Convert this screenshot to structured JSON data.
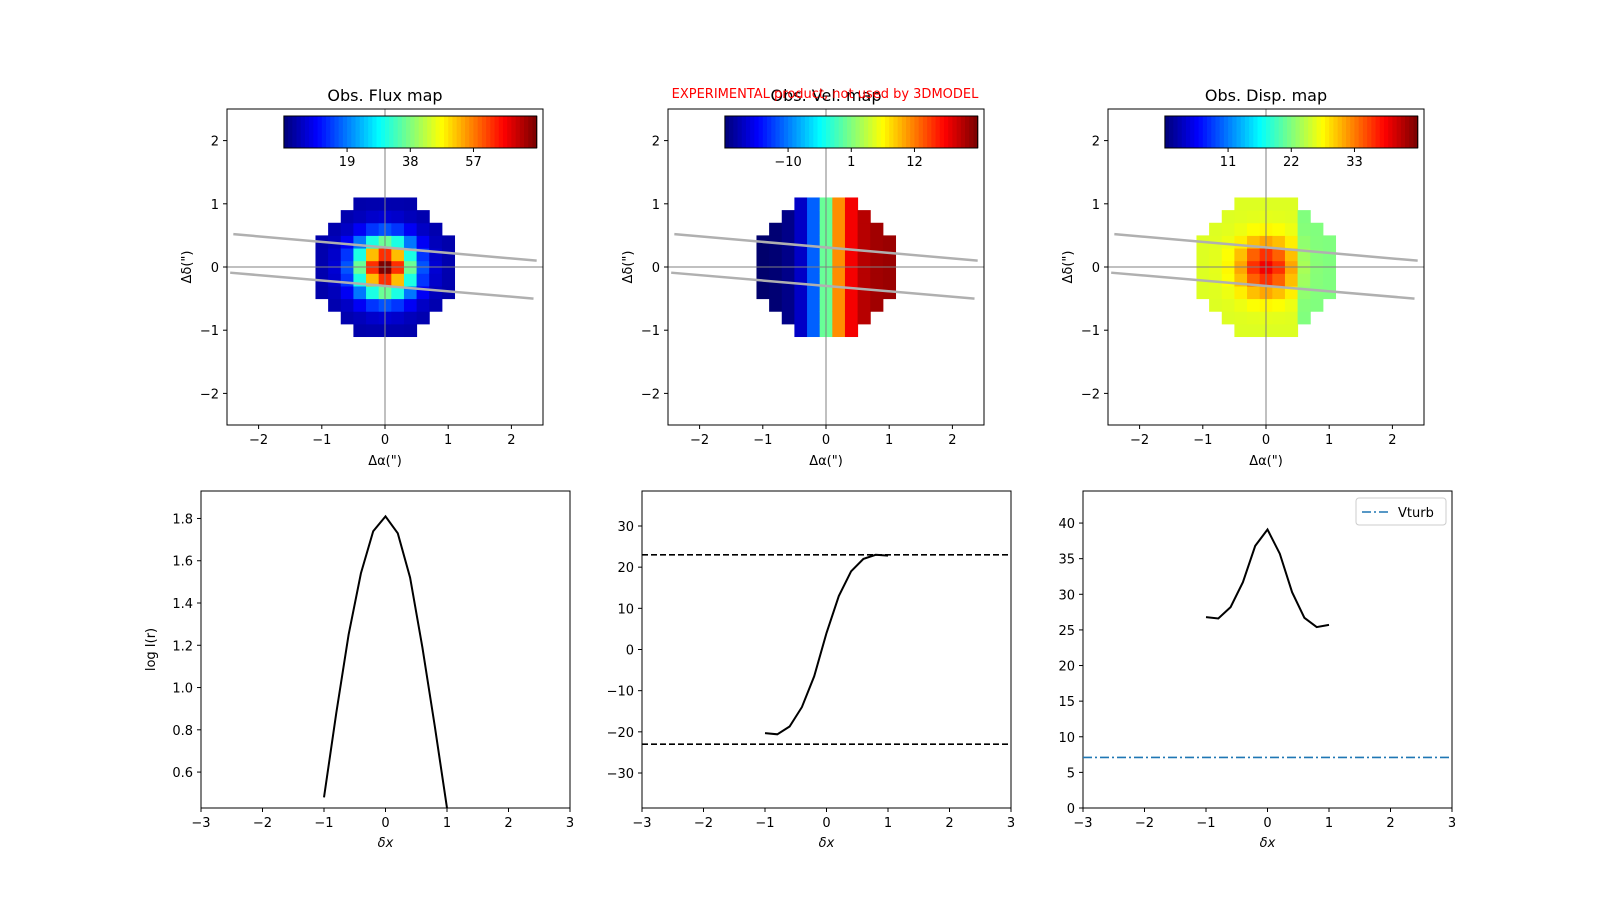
{
  "watermark": "EXPERIMENTAL product, not used by 3DMODEL",
  "colors": {
    "line": "#000000",
    "slit": "#b0b0b0",
    "crosshair": "#808080",
    "vturb": "#1f77b4",
    "colormap": "jet"
  },
  "chart_data": [
    {
      "id": "flux_map",
      "type": "heatmap",
      "title": "Obs. Flux map",
      "xlabel": "Δα(\")",
      "ylabel": "Δδ(\")",
      "xlim": [
        -2.5,
        2.5
      ],
      "ylim": [
        -2.5,
        2.5
      ],
      "xticks": [
        "−2",
        "−1",
        "0",
        "1",
        "2"
      ],
      "yticks": [
        "−2",
        "−1",
        "0",
        "1",
        "2"
      ],
      "grid": false,
      "colorbar": {
        "min": 0,
        "max": 76,
        "ticks": [
          "19",
          "38",
          "57"
        ],
        "position": "top"
      },
      "pixel_size": 0.2,
      "center": [
        0,
        0
      ],
      "radius": 1.1,
      "peak": 76,
      "sigma": 0.32,
      "floor": 3,
      "cells_estimate": "circular source, peak ~76 at center, falling to ~0-5 at r=1.1\""
    },
    {
      "id": "vel_map",
      "type": "heatmap",
      "title": "Obs. Vel. map",
      "xlabel": "Δα(\")",
      "ylabel": "Δδ(\")",
      "xlim": [
        -2.5,
        2.5
      ],
      "ylim": [
        -2.5,
        2.5
      ],
      "xticks": [
        "−2",
        "−1",
        "0",
        "1",
        "2"
      ],
      "yticks": [
        "−2",
        "−1",
        "0",
        "1",
        "2"
      ],
      "grid": false,
      "colorbar": {
        "min": -21,
        "max": 23,
        "ticks": [
          "−10",
          "1",
          "12"
        ],
        "position": "top"
      },
      "pixel_size": 0.2,
      "center": [
        0,
        0
      ],
      "radius": 1.1,
      "vmax": 22,
      "turnover": 0.35
    },
    {
      "id": "disp_map",
      "type": "heatmap",
      "title": "Obs. Disp. map",
      "xlabel": "Δα(\")",
      "ylabel": "Δδ(\")",
      "xlim": [
        -2.5,
        2.5
      ],
      "ylim": [
        -2.5,
        2.5
      ],
      "xticks": [
        "−2",
        "−1",
        "0",
        "1",
        "2"
      ],
      "yticks": [
        "−2",
        "−1",
        "0",
        "1",
        "2"
      ],
      "grid": false,
      "colorbar": {
        "min": 0,
        "max": 44,
        "ticks": [
          "11",
          "22",
          "33"
        ],
        "position": "top"
      },
      "pixel_size": 0.2,
      "center": [
        0,
        0
      ],
      "radius": 1.1,
      "base": 26,
      "peak": 39,
      "sigma": 0.3
    },
    {
      "id": "flux_profile",
      "type": "line",
      "title": "",
      "xlabel": "δx",
      "ylabel": "log I(r)",
      "xlim": [
        -3,
        3
      ],
      "ylim": [
        0.43,
        1.93
      ],
      "xticks": [
        "−3",
        "−2",
        "−1",
        "0",
        "1",
        "2",
        "3"
      ],
      "yticks": [
        "0.6",
        "0.8",
        "1.0",
        "1.2",
        "1.4",
        "1.6",
        "1.8"
      ],
      "grid": false,
      "x": [
        -1.0,
        -0.8,
        -0.6,
        -0.4,
        -0.2,
        0.0,
        0.2,
        0.4,
        0.6,
        0.8,
        1.0
      ],
      "y": [
        0.48,
        0.88,
        1.25,
        1.54,
        1.74,
        1.81,
        1.73,
        1.52,
        1.19,
        0.82,
        0.43
      ]
    },
    {
      "id": "vel_profile",
      "type": "line",
      "title": "",
      "xlabel": "δx",
      "ylabel": "",
      "xlim": [
        -3,
        3
      ],
      "ylim": [
        -38.5,
        38.5
      ],
      "xticks": [
        "−3",
        "−2",
        "−1",
        "0",
        "1",
        "2",
        "3"
      ],
      "yticks": [
        "−30",
        "−20",
        "−10",
        "0",
        "10",
        "20",
        "30"
      ],
      "grid": false,
      "x": [
        -1.0,
        -0.8,
        -0.6,
        -0.4,
        -0.2,
        0.0,
        0.2,
        0.4,
        0.6,
        0.8,
        1.0
      ],
      "y": [
        -20.3,
        -20.6,
        -18.7,
        -14.0,
        -6.5,
        4.0,
        13.0,
        19.0,
        22.0,
        23.0,
        22.8
      ],
      "hlines": [
        23.0,
        -23.0
      ]
    },
    {
      "id": "disp_profile",
      "type": "line",
      "title": "",
      "xlabel": "δx",
      "ylabel": "",
      "xlim": [
        -3,
        3
      ],
      "ylim": [
        0,
        44.5
      ],
      "xticks": [
        "−3",
        "−2",
        "−1",
        "0",
        "1",
        "2",
        "3"
      ],
      "yticks": [
        "0",
        "5",
        "10",
        "15",
        "20",
        "25",
        "30",
        "35",
        "40"
      ],
      "grid": false,
      "x": [
        -1.0,
        -0.8,
        -0.6,
        -0.4,
        -0.2,
        0.0,
        0.2,
        0.4,
        0.6,
        0.8,
        1.0
      ],
      "y": [
        26.8,
        26.6,
        28.2,
        31.7,
        36.8,
        39.1,
        35.7,
        30.3,
        26.7,
        25.4,
        25.7
      ],
      "hline": 7.1,
      "legend": {
        "label": "Vturb",
        "position": "top-right"
      }
    }
  ]
}
